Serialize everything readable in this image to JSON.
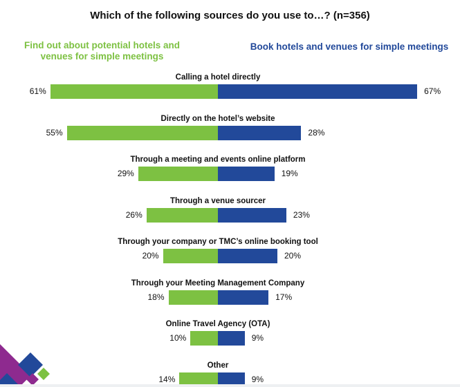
{
  "colors": {
    "find_out": "#7dc142",
    "book": "#22499a",
    "logo_purple": "#8e2a8f",
    "logo_blue": "#22499a",
    "logo_green": "#7dc142"
  },
  "chart_data": {
    "type": "bar",
    "orientation": "horizontal-diverging",
    "title": "Which of the following sources do you use to…? (n=356)",
    "legend": [
      "Find out about potential hotels and venues for simple meetings",
      "Book hotels and venues for simple meetings"
    ],
    "legend_placement": "top",
    "categories": [
      "Calling a hotel directly",
      "Directly on the hotel’s website",
      "Through a meeting and events online platform",
      "Through a venue sourcer",
      "Through your company or TMC’s online booking tool",
      "Through your Meeting Management Company",
      "Online Travel Agency (OTA)",
      "Other"
    ],
    "series": [
      {
        "name": "Find out about potential hotels and venues for simple meetings",
        "values": [
          61,
          55,
          29,
          26,
          20,
          18,
          10,
          14
        ],
        "labels": [
          "61%",
          "55%",
          "29%",
          "26%",
          "20%",
          "18%",
          "10%",
          "14%"
        ]
      },
      {
        "name": "Book hotels and venues for simple meetings",
        "values": [
          67,
          28,
          19,
          23,
          20,
          17,
          9,
          9
        ],
        "labels": [
          "67%",
          "28%",
          "19%",
          "23%",
          "20%",
          "17%",
          "9%",
          "9%"
        ]
      }
    ],
    "unit": "%",
    "grid": false
  }
}
